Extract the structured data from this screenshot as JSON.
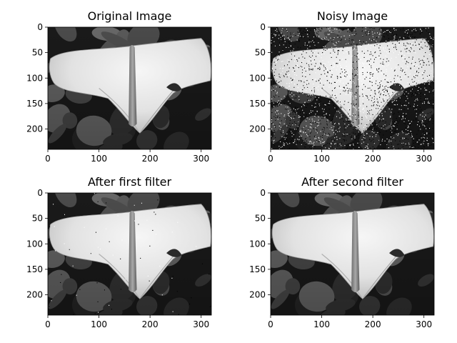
{
  "panels": [
    {
      "title": "Original Image",
      "variant": "clean",
      "x_ticks": [
        "0",
        "100",
        "200",
        "300"
      ],
      "y_ticks": [
        "0",
        "50",
        "100",
        "150",
        "200"
      ],
      "x_range": [
        0,
        320
      ],
      "y_range": [
        0,
        240
      ]
    },
    {
      "title": "Noisy Image",
      "variant": "salt-and-pepper-noise",
      "x_ticks": [
        "0",
        "100",
        "200",
        "300"
      ],
      "y_ticks": [
        "0",
        "50",
        "100",
        "150",
        "200"
      ],
      "x_range": [
        0,
        320
      ],
      "y_range": [
        0,
        240
      ]
    },
    {
      "title": "After first filter",
      "variant": "partially-denoised",
      "x_ticks": [
        "0",
        "100",
        "200",
        "300"
      ],
      "y_ticks": [
        "0",
        "50",
        "100",
        "150",
        "200"
      ],
      "x_range": [
        0,
        320
      ],
      "y_range": [
        0,
        240
      ]
    },
    {
      "title": "After second filter",
      "variant": "denoised",
      "x_ticks": [
        "0",
        "100",
        "200",
        "300"
      ],
      "y_ticks": [
        "0",
        "50",
        "100",
        "150",
        "200"
      ],
      "x_range": [
        0,
        320
      ],
      "y_range": [
        0,
        240
      ]
    }
  ],
  "colors": {
    "background": "#ffffff",
    "foliage_dark": "#1a1a1a",
    "foliage_mid": "#4a4a4a",
    "leaf": "#eeeeee",
    "spadix": "#8a8a8a"
  }
}
